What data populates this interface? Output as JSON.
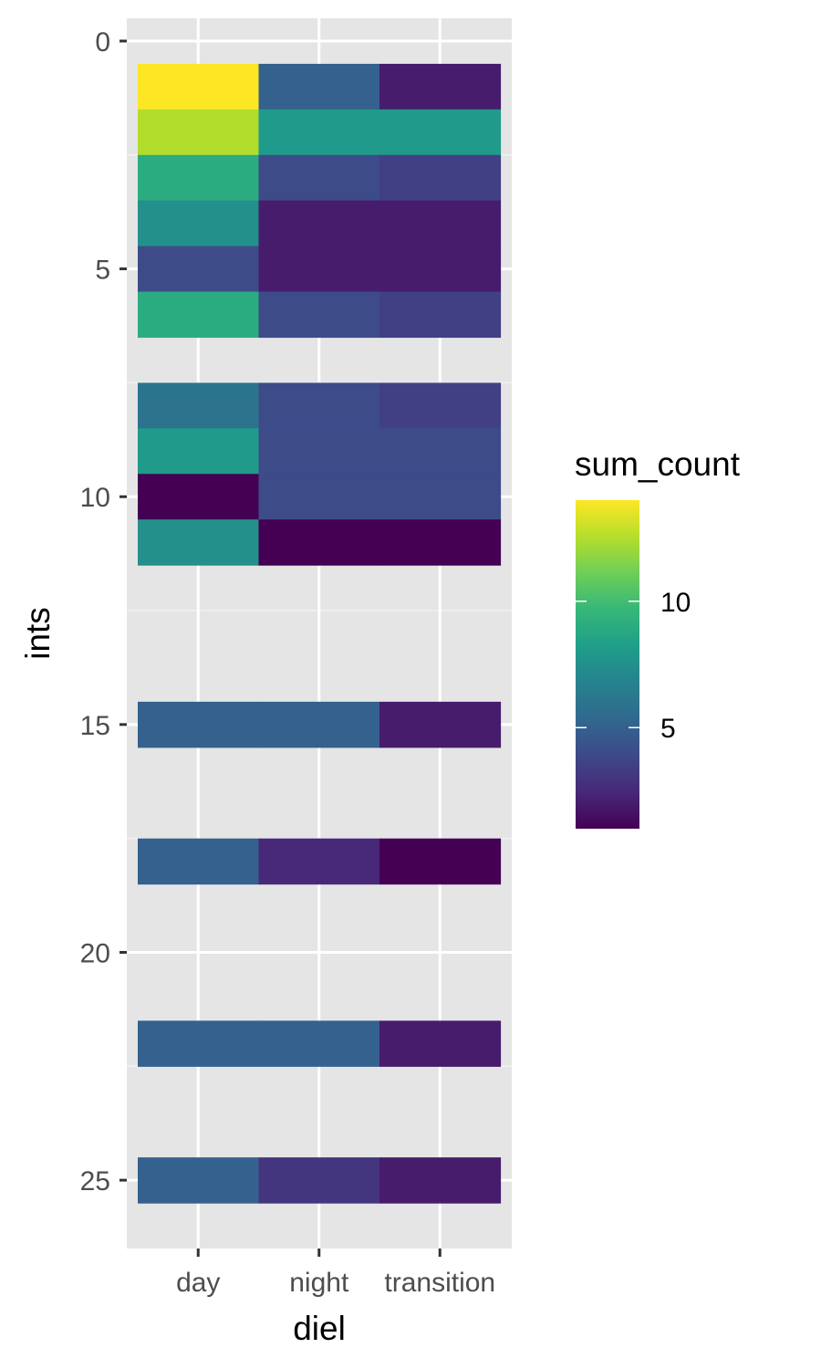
{
  "chart_data": {
    "type": "heatmap",
    "xlabel": "diel",
    "ylabel": "ints",
    "x_categories": [
      "day",
      "night",
      "transition"
    ],
    "y_ticks": [
      0,
      5,
      10,
      15,
      20,
      25
    ],
    "ylim": [
      -0.5,
      26.5
    ],
    "y_reversed": true,
    "grid": true,
    "colorscale": "viridis",
    "legend": {
      "title": "sum_count",
      "placement": "right",
      "min": 1,
      "max": 14,
      "ticks": [
        5,
        10
      ]
    },
    "cells": [
      {
        "x": "day",
        "y": 1,
        "value": 14
      },
      {
        "x": "night",
        "y": 1,
        "value": 5
      },
      {
        "x": "transition",
        "y": 1,
        "value": 2
      },
      {
        "x": "day",
        "y": 2,
        "value": 12.5
      },
      {
        "x": "night",
        "y": 2,
        "value": 8
      },
      {
        "x": "transition",
        "y": 2,
        "value": 8
      },
      {
        "x": "day",
        "y": 3,
        "value": 9
      },
      {
        "x": "night",
        "y": 3,
        "value": 4
      },
      {
        "x": "transition",
        "y": 3,
        "value": 3.5
      },
      {
        "x": "day",
        "y": 4,
        "value": 7.5
      },
      {
        "x": "night",
        "y": 4,
        "value": 2
      },
      {
        "x": "transition",
        "y": 4,
        "value": 2
      },
      {
        "x": "day",
        "y": 5,
        "value": 4
      },
      {
        "x": "night",
        "y": 5,
        "value": 2
      },
      {
        "x": "transition",
        "y": 5,
        "value": 2
      },
      {
        "x": "day",
        "y": 6,
        "value": 9
      },
      {
        "x": "night",
        "y": 6,
        "value": 4
      },
      {
        "x": "transition",
        "y": 6,
        "value": 3.5
      },
      {
        "x": "day",
        "y": 8,
        "value": 6
      },
      {
        "x": "night",
        "y": 8,
        "value": 4
      },
      {
        "x": "transition",
        "y": 8,
        "value": 3.5
      },
      {
        "x": "day",
        "y": 9,
        "value": 8
      },
      {
        "x": "night",
        "y": 9,
        "value": 4
      },
      {
        "x": "transition",
        "y": 9,
        "value": 4
      },
      {
        "x": "day",
        "y": 10,
        "value": 1
      },
      {
        "x": "night",
        "y": 10,
        "value": 4
      },
      {
        "x": "transition",
        "y": 10,
        "value": 4
      },
      {
        "x": "day",
        "y": 11,
        "value": 7.5
      },
      {
        "x": "night",
        "y": 11,
        "value": 1
      },
      {
        "x": "transition",
        "y": 11,
        "value": 1
      },
      {
        "x": "day",
        "y": 15,
        "value": 5
      },
      {
        "x": "night",
        "y": 15,
        "value": 5
      },
      {
        "x": "transition",
        "y": 15,
        "value": 2
      },
      {
        "x": "day",
        "y": 18,
        "value": 5
      },
      {
        "x": "night",
        "y": 18,
        "value": 2.5
      },
      {
        "x": "transition",
        "y": 18,
        "value": 1
      },
      {
        "x": "day",
        "y": 22,
        "value": 5
      },
      {
        "x": "night",
        "y": 22,
        "value": 5
      },
      {
        "x": "transition",
        "y": 22,
        "value": 2
      },
      {
        "x": "day",
        "y": 25,
        "value": 5
      },
      {
        "x": "night",
        "y": 25,
        "value": 3
      },
      {
        "x": "transition",
        "y": 25,
        "value": 2
      }
    ]
  }
}
